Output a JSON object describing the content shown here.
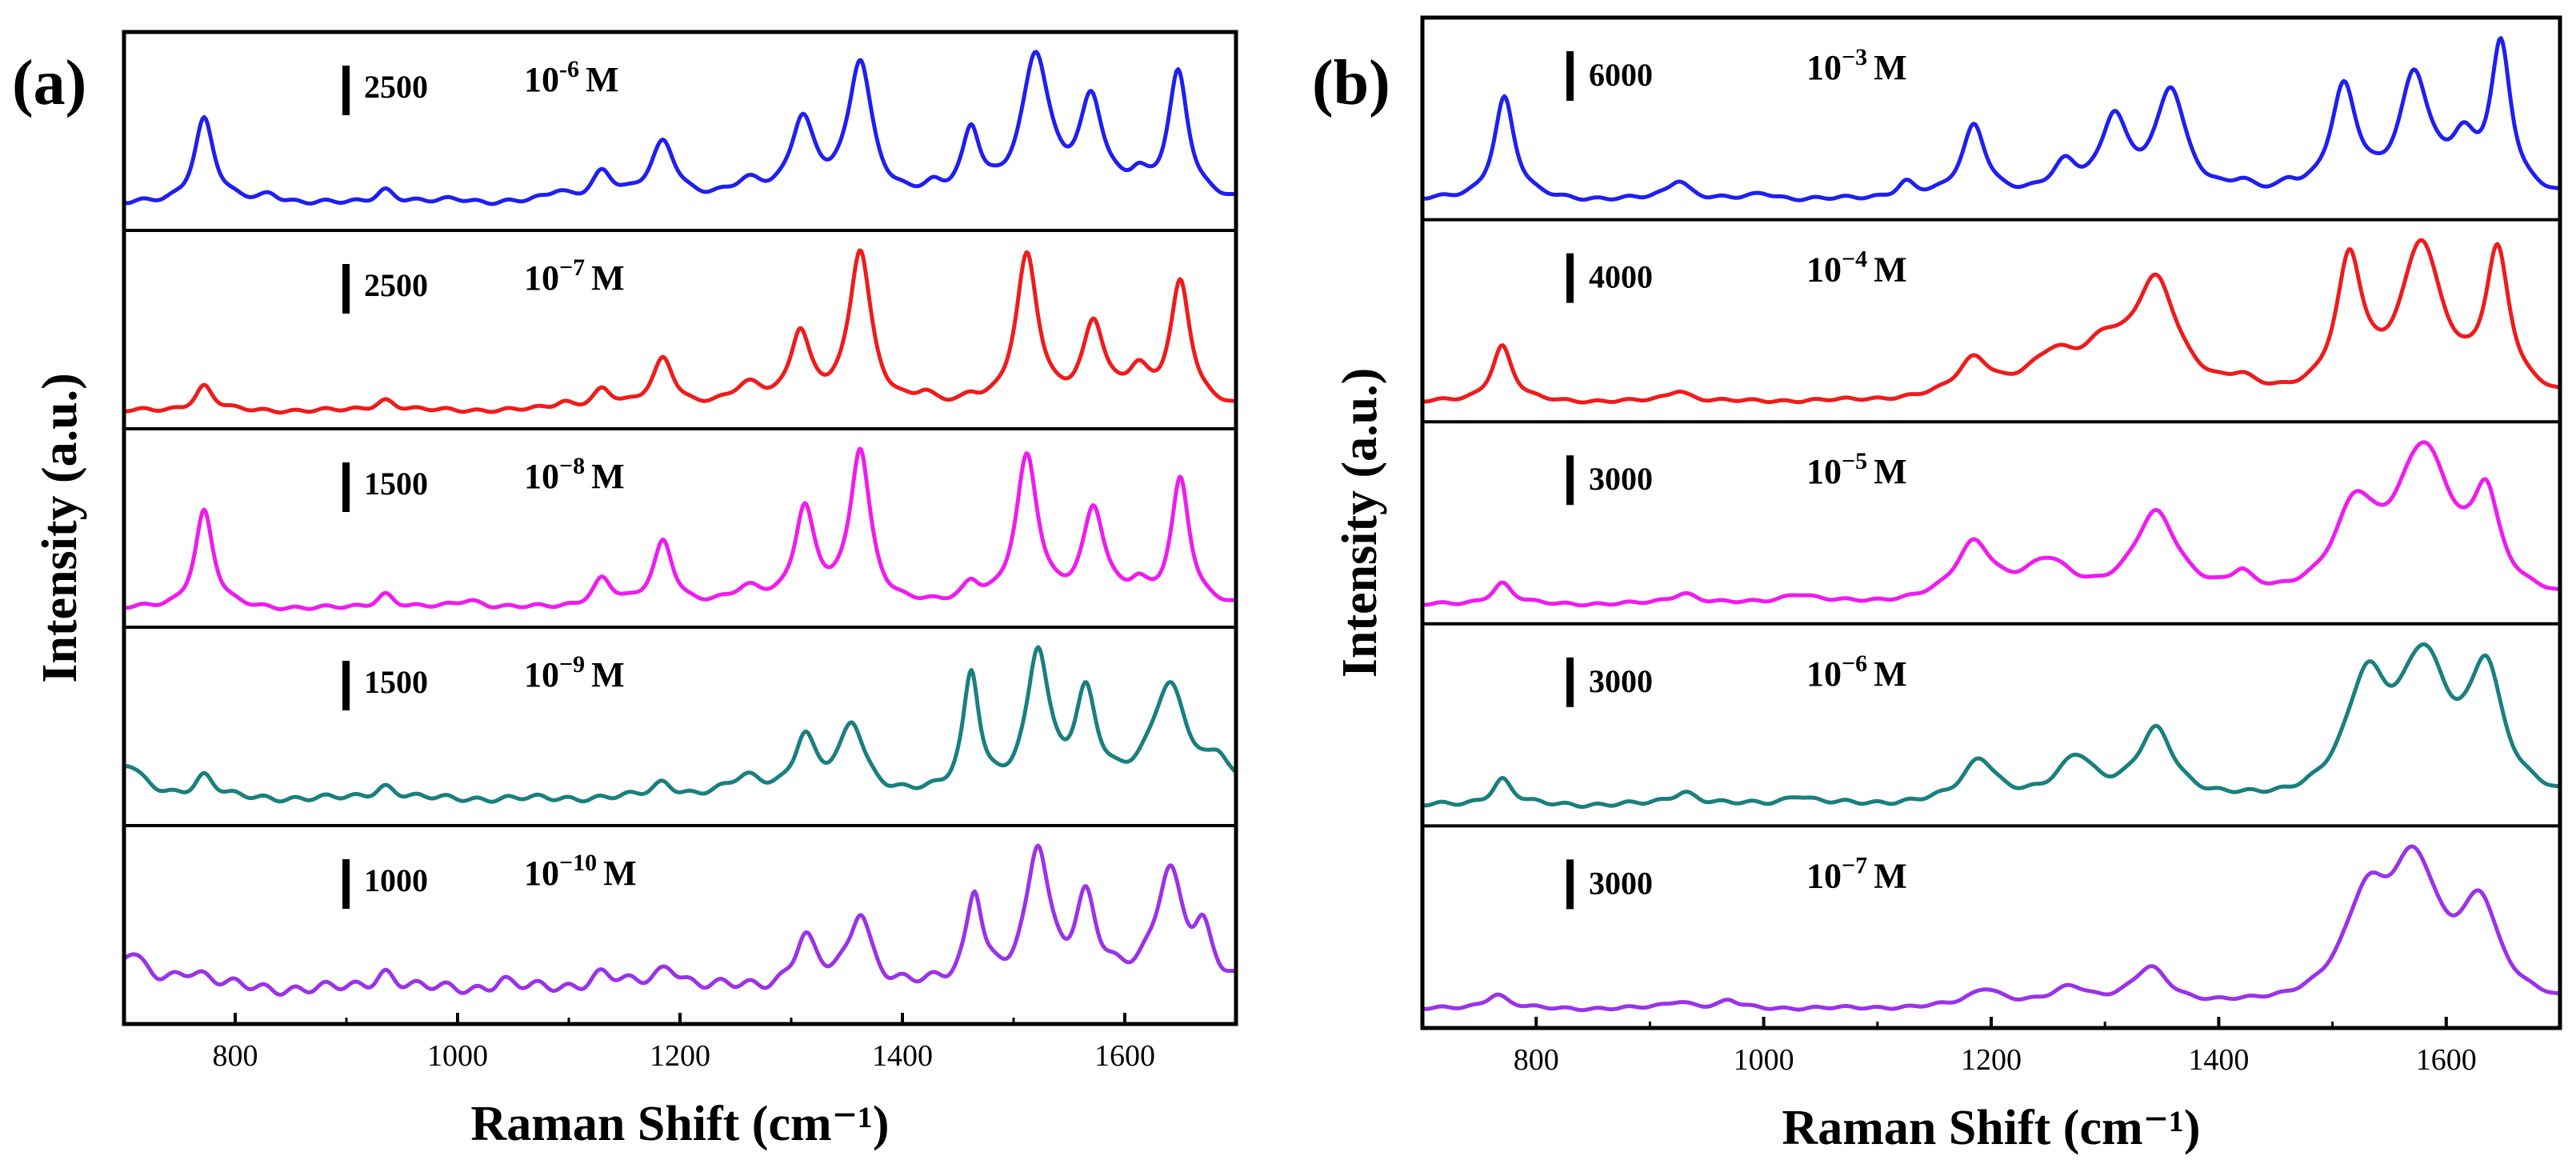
{
  "figure": {
    "background": "#ffffff",
    "frame_color": "#000000"
  },
  "chart_data": [
    {
      "type": "line",
      "panel_label": "(a)",
      "xlabel": "Raman Shift (cm⁻¹)",
      "ylabel": "Intensity (a.u.)",
      "xlim": [
        700,
        1700
      ],
      "xticks": [
        800,
        1000,
        1200,
        1400,
        1600
      ],
      "xtick_labels": [
        "800",
        "1000",
        "1200",
        "1400",
        "1600"
      ],
      "stacked": true,
      "series": [
        {
          "name": "10^-6 M",
          "label_base": "10",
          "label_exp": "-6",
          "label_unit": "M",
          "scale_bar": "2500",
          "color": "#1f1ff0",
          "baseline": 0.1,
          "noise": 0.02,
          "peaks": [
            [
              772,
              0.6,
              11
            ],
            [
              832,
              0.06,
              12
            ],
            [
              935,
              0.1,
              11
            ],
            [
              1000,
              0.03,
              18
            ],
            [
              1090,
              0.07,
              12
            ],
            [
              1130,
              0.2,
              12
            ],
            [
              1185,
              0.42,
              14
            ],
            [
              1262,
              0.12,
              18
            ],
            [
              1310,
              0.55,
              13
            ],
            [
              1362,
              0.97,
              13
            ],
            [
              1428,
              0.06,
              10
            ],
            [
              1462,
              0.47,
              10
            ],
            [
              1520,
              1.0,
              15
            ],
            [
              1570,
              0.68,
              13
            ],
            [
              1612,
              0.12,
              10
            ],
            [
              1648,
              0.9,
              11
            ]
          ]
        },
        {
          "name": "10^-7 M",
          "label_base": "10",
          "label_exp": "−7",
          "label_unit": "M",
          "scale_bar": "2500",
          "color": "#ee1c1c",
          "baseline": 0.04,
          "noise": 0.015,
          "peaks": [
            [
              772,
              0.16,
              10
            ],
            [
              935,
              0.07,
              11
            ],
            [
              1095,
              0.04,
              10
            ],
            [
              1130,
              0.12,
              11
            ],
            [
              1185,
              0.32,
              12
            ],
            [
              1262,
              0.14,
              18
            ],
            [
              1308,
              0.46,
              11
            ],
            [
              1362,
              1.0,
              12
            ],
            [
              1420,
              0.06,
              10
            ],
            [
              1462,
              0.05,
              10
            ],
            [
              1512,
              0.96,
              12
            ],
            [
              1572,
              0.52,
              12
            ],
            [
              1612,
              0.2,
              12
            ],
            [
              1650,
              0.8,
              11
            ]
          ]
        },
        {
          "name": "10^-8 M",
          "label_base": "10",
          "label_exp": "−8",
          "label_unit": "M",
          "scale_bar": "1500",
          "color": "#ee1cee",
          "baseline": 0.04,
          "noise": 0.015,
          "peaks": [
            [
              772,
              0.6,
              10
            ],
            [
              935,
              0.09,
              10
            ],
            [
              1010,
              0.05,
              15
            ],
            [
              1130,
              0.17,
              11
            ],
            [
              1185,
              0.4,
              11
            ],
            [
              1262,
              0.1,
              18
            ],
            [
              1312,
              0.58,
              11
            ],
            [
              1362,
              0.95,
              11
            ],
            [
              1462,
              0.12,
              10
            ],
            [
              1512,
              0.9,
              12
            ],
            [
              1572,
              0.58,
              12
            ],
            [
              1612,
              0.1,
              10
            ],
            [
              1650,
              0.78,
              10
            ]
          ]
        },
        {
          "name": "10^-9 M",
          "label_base": "10",
          "label_exp": "−9",
          "label_unit": "M",
          "scale_bar": "1500",
          "color": "#1a7f7f",
          "baseline": 0.08,
          "noise": 0.02,
          "peaks": [
            [
              702,
              0.18,
              18
            ],
            [
              772,
              0.12,
              11
            ],
            [
              935,
              0.07,
              12
            ],
            [
              1185,
              0.08,
              12
            ],
            [
              1260,
              0.1,
              20
            ],
            [
              1312,
              0.3,
              12
            ],
            [
              1355,
              0.38,
              14
            ],
            [
              1462,
              0.65,
              9
            ],
            [
              1522,
              0.75,
              12
            ],
            [
              1565,
              0.52,
              12
            ],
            [
              1640,
              0.6,
              20
            ],
            [
              1685,
              0.15,
              12
            ]
          ]
        },
        {
          "name": "10^-10 M",
          "label_base": "10",
          "label_exp": "−10",
          "label_unit": "M",
          "scale_bar": "1000",
          "color": "#9a33e8",
          "baseline": 0.1,
          "noise": 0.03,
          "peaks": [
            [
              705,
              0.15,
              15
            ],
            [
              760,
              0.08,
              20
            ],
            [
              935,
              0.08,
              12
            ],
            [
              1040,
              0.04,
              10
            ],
            [
              1130,
              0.07,
              14
            ],
            [
              1190,
              0.1,
              14
            ],
            [
              1312,
              0.22,
              12
            ],
            [
              1362,
              0.33,
              12
            ],
            [
              1465,
              0.42,
              9
            ],
            [
              1522,
              0.6,
              12
            ],
            [
              1565,
              0.38,
              12
            ],
            [
              1640,
              0.52,
              15
            ],
            [
              1670,
              0.2,
              10
            ]
          ]
        }
      ]
    },
    {
      "type": "line",
      "panel_label": "(b)",
      "xlabel": "Raman Shift (cm⁻¹)",
      "ylabel": "Intensity (a.u.)",
      "xlim": [
        700,
        1700
      ],
      "xticks": [
        800,
        1000,
        1200,
        1400,
        1600
      ],
      "xtick_labels": [
        "800",
        "1000",
        "1200",
        "1400",
        "1600"
      ],
      "stacked": true,
      "series": [
        {
          "name": "10^-3 M",
          "label_base": "10",
          "label_exp": "−3",
          "label_unit": "M",
          "scale_bar": "6000",
          "color": "#1f1ff0",
          "baseline": 0.05,
          "noise": 0.015,
          "peaks": [
            [
              772,
              0.68,
              11
            ],
            [
              925,
              0.13,
              12
            ],
            [
              1000,
              0.04,
              12
            ],
            [
              1125,
              0.1,
              10
            ],
            [
              1185,
              0.48,
              13
            ],
            [
              1265,
              0.2,
              14
            ],
            [
              1308,
              0.5,
              14
            ],
            [
              1358,
              0.7,
              16
            ],
            [
              1420,
              0.06,
              12
            ],
            [
              1462,
              0.06,
              10
            ],
            [
              1510,
              0.7,
              14
            ],
            [
              1572,
              0.78,
              16
            ],
            [
              1615,
              0.3,
              14
            ],
            [
              1648,
              0.98,
              11
            ]
          ]
        },
        {
          "name": "10^-4 M",
          "label_base": "10",
          "label_exp": "−4",
          "label_unit": "M",
          "scale_bar": "4000",
          "color": "#ee1c1c",
          "baseline": 0.04,
          "noise": 0.01,
          "peaks": [
            [
              770,
              0.3,
              11
            ],
            [
              925,
              0.06,
              12
            ],
            [
              1185,
              0.2,
              18
            ],
            [
              1255,
              0.2,
              28
            ],
            [
              1345,
              0.6,
              24
            ],
            [
              1300,
              0.2,
              22
            ],
            [
              1420,
              0.06,
              14
            ],
            [
              1515,
              0.7,
              14
            ],
            [
              1578,
              0.8,
              22
            ],
            [
              1645,
              0.75,
              13
            ]
          ]
        },
        {
          "name": "10^-5 M",
          "label_base": "10",
          "label_exp": "−5",
          "label_unit": "M",
          "scale_bar": "3000",
          "color": "#ee1cee",
          "baseline": 0.04,
          "noise": 0.01,
          "peaks": [
            [
              770,
              0.12,
              11
            ],
            [
              930,
              0.06,
              14
            ],
            [
              1030,
              0.05,
              18
            ],
            [
              1185,
              0.32,
              20
            ],
            [
              1250,
              0.2,
              26
            ],
            [
              1345,
              0.48,
              24
            ],
            [
              1420,
              0.1,
              12
            ],
            [
              1520,
              0.45,
              22
            ],
            [
              1580,
              0.82,
              30
            ],
            [
              1635,
              0.5,
              14
            ]
          ]
        },
        {
          "name": "10^-6 M",
          "label_base": "10",
          "label_exp": "−6",
          "label_unit": "M",
          "scale_bar": "3000",
          "color": "#1a7f7f",
          "baseline": 0.02,
          "noise": 0.006,
          "peaks": [
            [
              770,
              0.06,
              11
            ],
            [
              930,
              0.03,
              14
            ],
            [
              1030,
              0.02,
              14
            ],
            [
              1190,
              0.1,
              18
            ],
            [
              1275,
              0.1,
              20
            ],
            [
              1345,
              0.16,
              20
            ],
            [
              1530,
              0.25,
              22
            ],
            [
              1580,
              0.3,
              26
            ],
            [
              1635,
              0.28,
              18
            ]
          ]
        },
        {
          "name": "10^-7 M",
          "label_base": "10",
          "label_exp": "−7",
          "label_unit": "M",
          "scale_bar": "3000",
          "color": "#9a33e8",
          "baseline": 0.02,
          "noise": 0.005,
          "peaks": [
            [
              765,
              0.04,
              12
            ],
            [
              925,
              0.02,
              14
            ],
            [
              970,
              0.02,
              10
            ],
            [
              1195,
              0.05,
              18
            ],
            [
              1270,
              0.05,
              20
            ],
            [
              1340,
              0.1,
              20
            ],
            [
              1530,
              0.25,
              24
            ],
            [
              1572,
              0.35,
              26
            ],
            [
              1630,
              0.25,
              20
            ]
          ]
        }
      ]
    }
  ]
}
